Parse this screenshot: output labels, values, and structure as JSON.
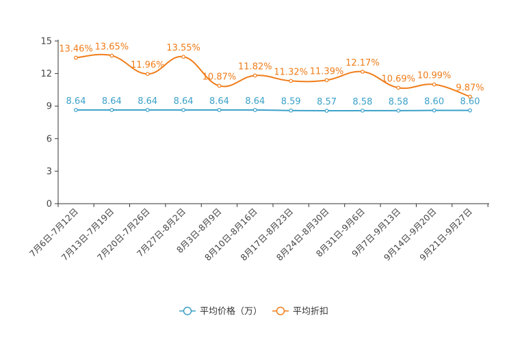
{
  "chart_data": {
    "type": "line",
    "title": "",
    "xlabel": "",
    "ylabel": "",
    "ylim": [
      0,
      15
    ],
    "yticks": [
      0,
      3,
      6,
      9,
      12,
      15
    ],
    "grid": false,
    "legend_position": "bottom-center",
    "categories": [
      "7月6日-7月12日",
      "7月13日-7月19日",
      "7月20日-7月26日",
      "7月27日-8月2日",
      "8月3日-8月9日",
      "8月10日-8月16日",
      "8月17日-8月23日",
      "8月24日-8月30日",
      "8月31日-9月6日",
      "9月7日-9月13日",
      "9月14日-9月20日",
      "9月21日-9月27日"
    ],
    "series": [
      {
        "name": "平均价格（万）",
        "color": "#3aa0c8",
        "values": [
          8.64,
          8.64,
          8.64,
          8.64,
          8.64,
          8.64,
          8.59,
          8.57,
          8.58,
          8.58,
          8.6,
          8.6
        ],
        "labels": [
          "8.64",
          "8.64",
          "8.64",
          "8.64",
          "8.64",
          "8.64",
          "8.59",
          "8.57",
          "8.58",
          "8.58",
          "8.60",
          "8.60"
        ]
      },
      {
        "name": "平均折扣",
        "color": "#f07c18",
        "values": [
          13.46,
          13.65,
          11.96,
          13.55,
          10.87,
          11.82,
          11.32,
          11.39,
          12.17,
          10.69,
          10.99,
          9.87
        ],
        "labels": [
          "13.46%",
          "13.65%",
          "11.96%",
          "13.55%",
          "10.87%",
          "11.82%",
          "11.32%",
          "11.39%",
          "12.17%",
          "10.69%",
          "10.99%",
          "9.87%"
        ]
      }
    ]
  }
}
